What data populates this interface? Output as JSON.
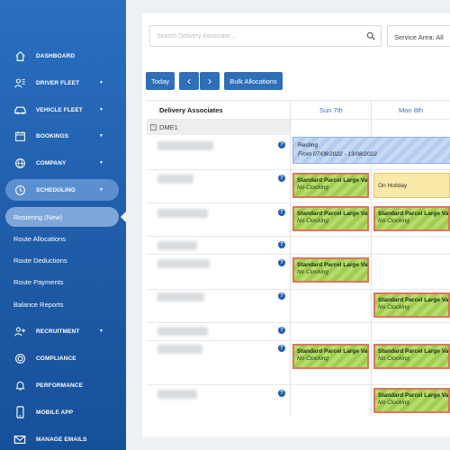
{
  "sidebar": {
    "items": [
      {
        "label": "DASHBOARD",
        "icon": "home-icon",
        "chevron": false
      },
      {
        "label": "DRIVER FLEET",
        "icon": "drivers-icon",
        "chevron": true
      },
      {
        "label": "VEHICLE FLEET",
        "icon": "car-icon",
        "chevron": true
      },
      {
        "label": "BOOKINGS",
        "icon": "calendar-icon",
        "chevron": true
      },
      {
        "label": "COMPANY",
        "icon": "globe-icon",
        "chevron": true
      },
      {
        "label": "SCHEDULING",
        "icon": "clock-icon",
        "chevron": true
      }
    ],
    "sub_items": [
      {
        "label": "Rostering (New)",
        "active": true
      },
      {
        "label": "Route Allocations"
      },
      {
        "label": "Route Deductions"
      },
      {
        "label": "Route Payments"
      },
      {
        "label": "Balance Reports"
      }
    ],
    "items_after": [
      {
        "label": "RECRUITMENT",
        "icon": "add-user-icon",
        "chevron": true
      },
      {
        "label": "COMPLIANCE",
        "icon": "target-icon",
        "chevron": false
      },
      {
        "label": "PERFORMANCE",
        "icon": "bell-icon",
        "chevron": false
      },
      {
        "label": "MOBILE APP",
        "icon": "phone-icon",
        "chevron": false
      },
      {
        "label": "MANAGE EMAILS",
        "icon": "email-icon",
        "chevron": false
      }
    ],
    "chevron_glyph": "▼"
  },
  "toolbar": {
    "search_placeholder": "Search Delivery Associate ...",
    "service_area": "Service Area: All",
    "today": "Today",
    "prev": "‹",
    "next": "›",
    "bulk": "Bulk Allocations"
  },
  "grid": {
    "header_associates": "Delivery Associates",
    "days": [
      "Sun 7th",
      "Mon 8th"
    ],
    "group": "DME1",
    "group_toggle": "−",
    "help_glyph": "?",
    "shift_title": "Standard Parcel Large Va",
    "shift_sub": "No Clocking",
    "holiday": "On Holiday",
    "resting_title": "Resting",
    "resting_sub": "From 07/08/2022 - 13/08/2022"
  },
  "colors": {
    "sidebar": "#1e5aa6",
    "accent": "#2f6fb8",
    "shift_border": "#e0745b",
    "shift_fill": "#a8d35a",
    "holiday": "#fbe9a9",
    "resting": "#b9d1f1"
  }
}
